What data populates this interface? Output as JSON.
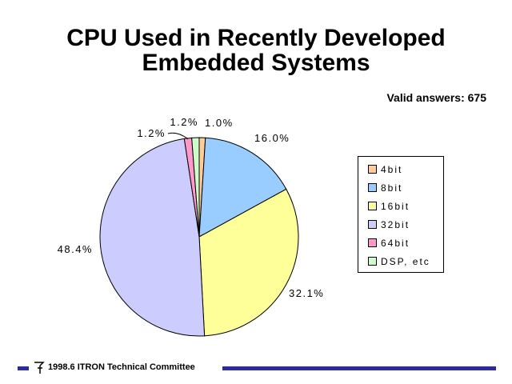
{
  "title_line1": "CPU Used in Recently Developed",
  "title_line2": "Embedded Systems",
  "valid_answers": "Valid answers: 675",
  "footer": "1998.6  ITRON Technical Committee",
  "chart_data": {
    "type": "pie",
    "title": "CPU Used in Recently Developed Embedded Systems",
    "categories": [
      "4bit",
      "8bit",
      "16bit",
      "32bit",
      "64bit",
      "DSP, etc"
    ],
    "values": [
      1.0,
      16.0,
      32.1,
      48.4,
      1.2,
      1.2
    ],
    "labels": [
      "1.0%",
      "16.0%",
      "32.1%",
      "48.4%",
      "1.2%",
      "1.2%"
    ],
    "colors": [
      "#ffcc99",
      "#99ccff",
      "#ffff99",
      "#ccccff",
      "#ff99cc",
      "#ccffcc"
    ],
    "start_angle_deg": 0,
    "direction": "clockwise",
    "legend_position": "right"
  }
}
